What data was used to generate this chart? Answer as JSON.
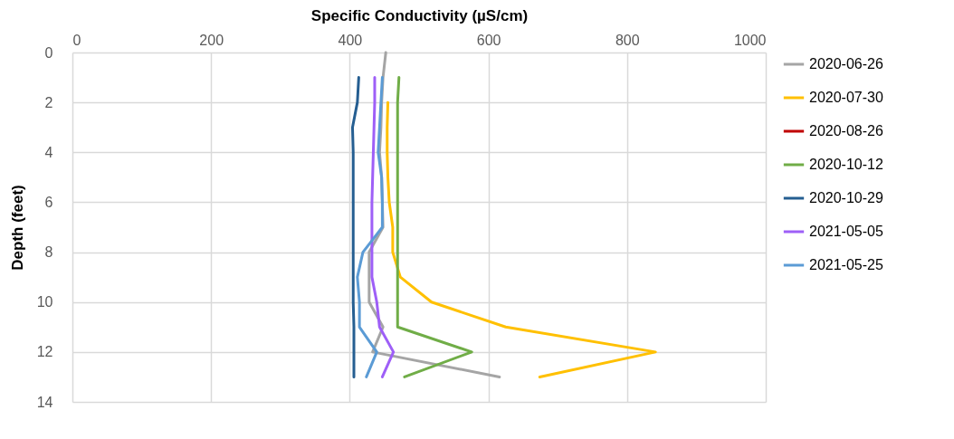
{
  "chart_data": {
    "type": "line",
    "xlabel": "Specific Conductivity (µS/cm)",
    "ylabel": "Depth (feet)",
    "orientation": "horizontal",
    "x": [
      0,
      1,
      2,
      3,
      4,
      5,
      6,
      7,
      8,
      9,
      10,
      11,
      12,
      13
    ],
    "series": [
      {
        "name": "2020-06-26",
        "color": "#a5a5a5",
        "values": [
          452,
          448,
          446,
          445,
          443,
          446,
          447,
          448,
          428,
          428,
          428,
          448,
          433,
          616
        ]
      },
      {
        "name": "2020-07-30",
        "color": "#ffc000",
        "values": [
          null,
          null,
          455,
          454,
          454,
          455,
          457,
          462,
          462,
          473,
          518,
          625,
          841,
          674
        ]
      },
      {
        "name": "2020-08-26",
        "color": "#c00000",
        "values": [
          null,
          null,
          null,
          null,
          null,
          null,
          null,
          null,
          null,
          null,
          null,
          null,
          null,
          null
        ]
      },
      {
        "name": "2020-10-12",
        "color": "#70ad47",
        "values": [
          null,
          471,
          469,
          469,
          469,
          469,
          469,
          469,
          469,
          469,
          469,
          469,
          576,
          479
        ]
      },
      {
        "name": "2020-10-29",
        "color": "#255e91",
        "values": [
          null,
          413,
          411,
          404,
          405,
          405,
          405,
          405,
          405,
          405,
          405,
          406,
          406,
          406
        ]
      },
      {
        "name": "2021-05-05",
        "color": "#9e5ff7",
        "values": [
          null,
          436,
          436,
          435,
          434,
          433,
          432,
          432,
          432,
          432,
          439,
          443,
          463,
          447
        ]
      },
      {
        "name": "2021-05-25",
        "color": "#5b9bd5",
        "values": [
          null,
          447,
          445,
          443,
          441,
          446,
          447,
          447,
          419,
          411,
          414,
          414,
          439,
          424
        ]
      }
    ],
    "xlim": [
      0,
      1000
    ],
    "xticks": [
      0,
      200,
      400,
      600,
      800,
      1000
    ],
    "ylim": [
      14,
      0
    ],
    "yticks": [
      0,
      2,
      4,
      6,
      8,
      10,
      12,
      14
    ],
    "grid": true,
    "legend": "right",
    "line_style": "solid",
    "marker": "none"
  }
}
